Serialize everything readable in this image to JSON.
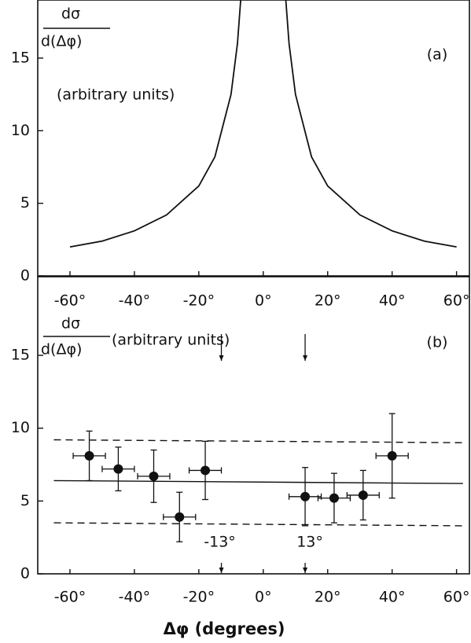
{
  "chart_data": [
    {
      "type": "line",
      "panel_label": "(a)",
      "ylabel_numerator": "dσ",
      "ylabel_denominator": "d(Δφ)",
      "ylabel_units": "(arbitrary units)",
      "x": [
        -60,
        -50,
        -40,
        -30,
        -20,
        -15,
        -10,
        -8,
        -7,
        0,
        7,
        8,
        10,
        15,
        20,
        30,
        40,
        50,
        60
      ],
      "values": [
        2.0,
        2.4,
        3.1,
        4.2,
        6.2,
        8.2,
        12.5,
        16,
        19,
        null,
        19,
        16,
        12.5,
        8.2,
        6.2,
        4.2,
        3.1,
        2.4,
        2.0
      ],
      "color": "#111",
      "xlim": [
        -70,
        64
      ],
      "ylim": [
        0,
        19
      ],
      "xticks": [
        {
          "value": -60,
          "label": "-60°"
        },
        {
          "value": -40,
          "label": "-40°"
        },
        {
          "value": -20,
          "label": "-20°"
        },
        {
          "value": 0,
          "label": "0°"
        },
        {
          "value": 20,
          "label": "20°"
        },
        {
          "value": 40,
          "label": "40°"
        },
        {
          "value": 60,
          "label": "60°"
        }
      ],
      "yticks": [
        0,
        5,
        10,
        15
      ]
    },
    {
      "type": "errorbar",
      "panel_label": "(b)",
      "ylabel_numerator": "dσ",
      "ylabel_denominator": "d(Δφ)",
      "ylabel_units": "(arbitrary units)",
      "xlabel": "Δφ (degrees)",
      "x": [
        -54,
        -45,
        -34,
        -26,
        -18,
        13,
        22,
        31,
        40
      ],
      "values": [
        8.1,
        7.2,
        6.7,
        3.9,
        7.1,
        5.3,
        5.2,
        5.4,
        8.1
      ],
      "xerr": [
        5,
        5,
        5,
        5,
        5,
        5,
        5,
        5,
        5
      ],
      "yerr": [
        1.7,
        1.5,
        1.8,
        1.7,
        2.0,
        2.0,
        1.7,
        1.7,
        2.9
      ],
      "color": "#111",
      "lines": [
        {
          "x": [
            -65,
            62
          ],
          "values": [
            9.2,
            9.0
          ],
          "style": "dashed"
        },
        {
          "x": [
            -65,
            62
          ],
          "values": [
            6.4,
            6.2
          ],
          "style": "solid"
        },
        {
          "x": [
            -65,
            62
          ],
          "values": [
            3.5,
            3.3
          ],
          "style": "dashed"
        }
      ],
      "annotations": [
        {
          "text": "-13°",
          "x": -13
        },
        {
          "text": "13°",
          "x": 13
        }
      ],
      "xlim": [
        -70,
        64
      ],
      "ylim": [
        0,
        20.4
      ],
      "xticks": [
        {
          "value": -60,
          "label": "-60°"
        },
        {
          "value": -40,
          "label": "-40°"
        },
        {
          "value": -20,
          "label": "-20°"
        },
        {
          "value": 0,
          "label": "0°"
        },
        {
          "value": 20,
          "label": "20°"
        },
        {
          "value": 40,
          "label": "40°"
        },
        {
          "value": 60,
          "label": "60°"
        }
      ],
      "yticks": [
        0,
        5,
        10,
        15
      ]
    }
  ]
}
